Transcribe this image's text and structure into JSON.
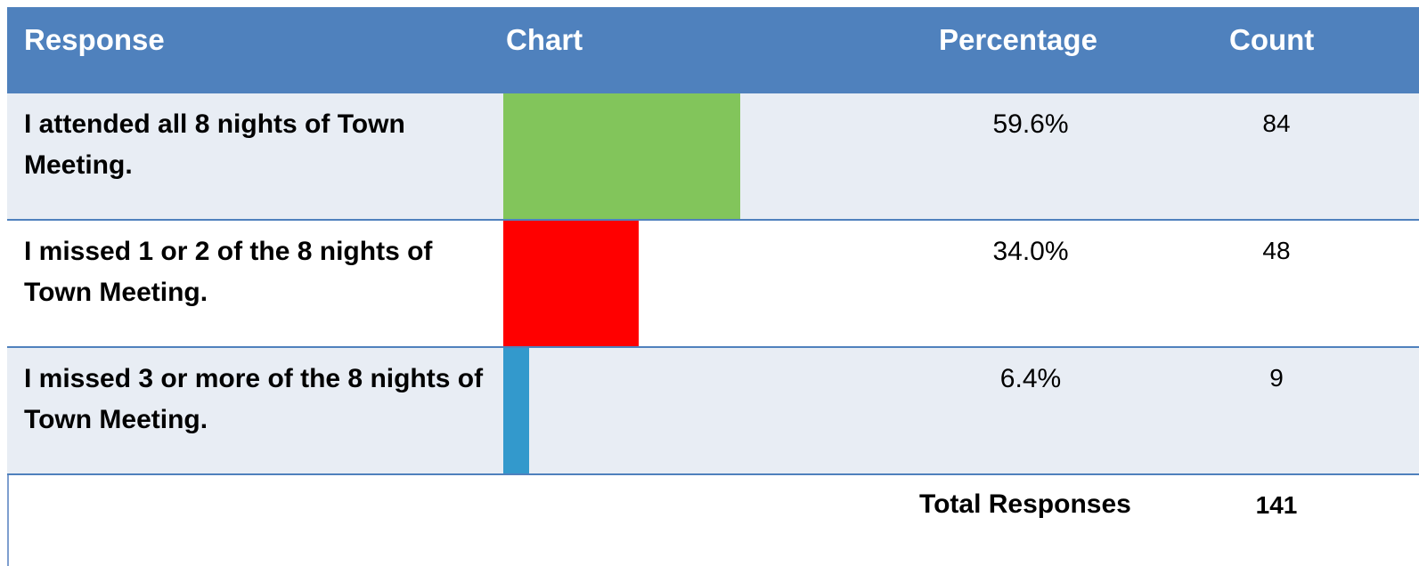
{
  "table": {
    "header": [
      "Response",
      "Chart",
      "Percentage",
      "Count"
    ],
    "rows": [
      {
        "response": "I attended all 8 nights of Town Meeting.",
        "percentage": 59.6,
        "percentage_label": "59.6%",
        "count": 84,
        "color": "#82c55b"
      },
      {
        "response": "I missed 1 or 2 of the 8 nights of Town Meeting.",
        "percentage": 34.0,
        "percentage_label": "34.0%",
        "count": 48,
        "color": "#ff0000"
      },
      {
        "response": "I missed 3 or more of the 8 nights of Town Meeting.",
        "percentage": 6.4,
        "percentage_label": "6.4%",
        "count": 9,
        "color": "#3399cc"
      }
    ],
    "total_label": "Total Responses",
    "total": 141
  }
}
